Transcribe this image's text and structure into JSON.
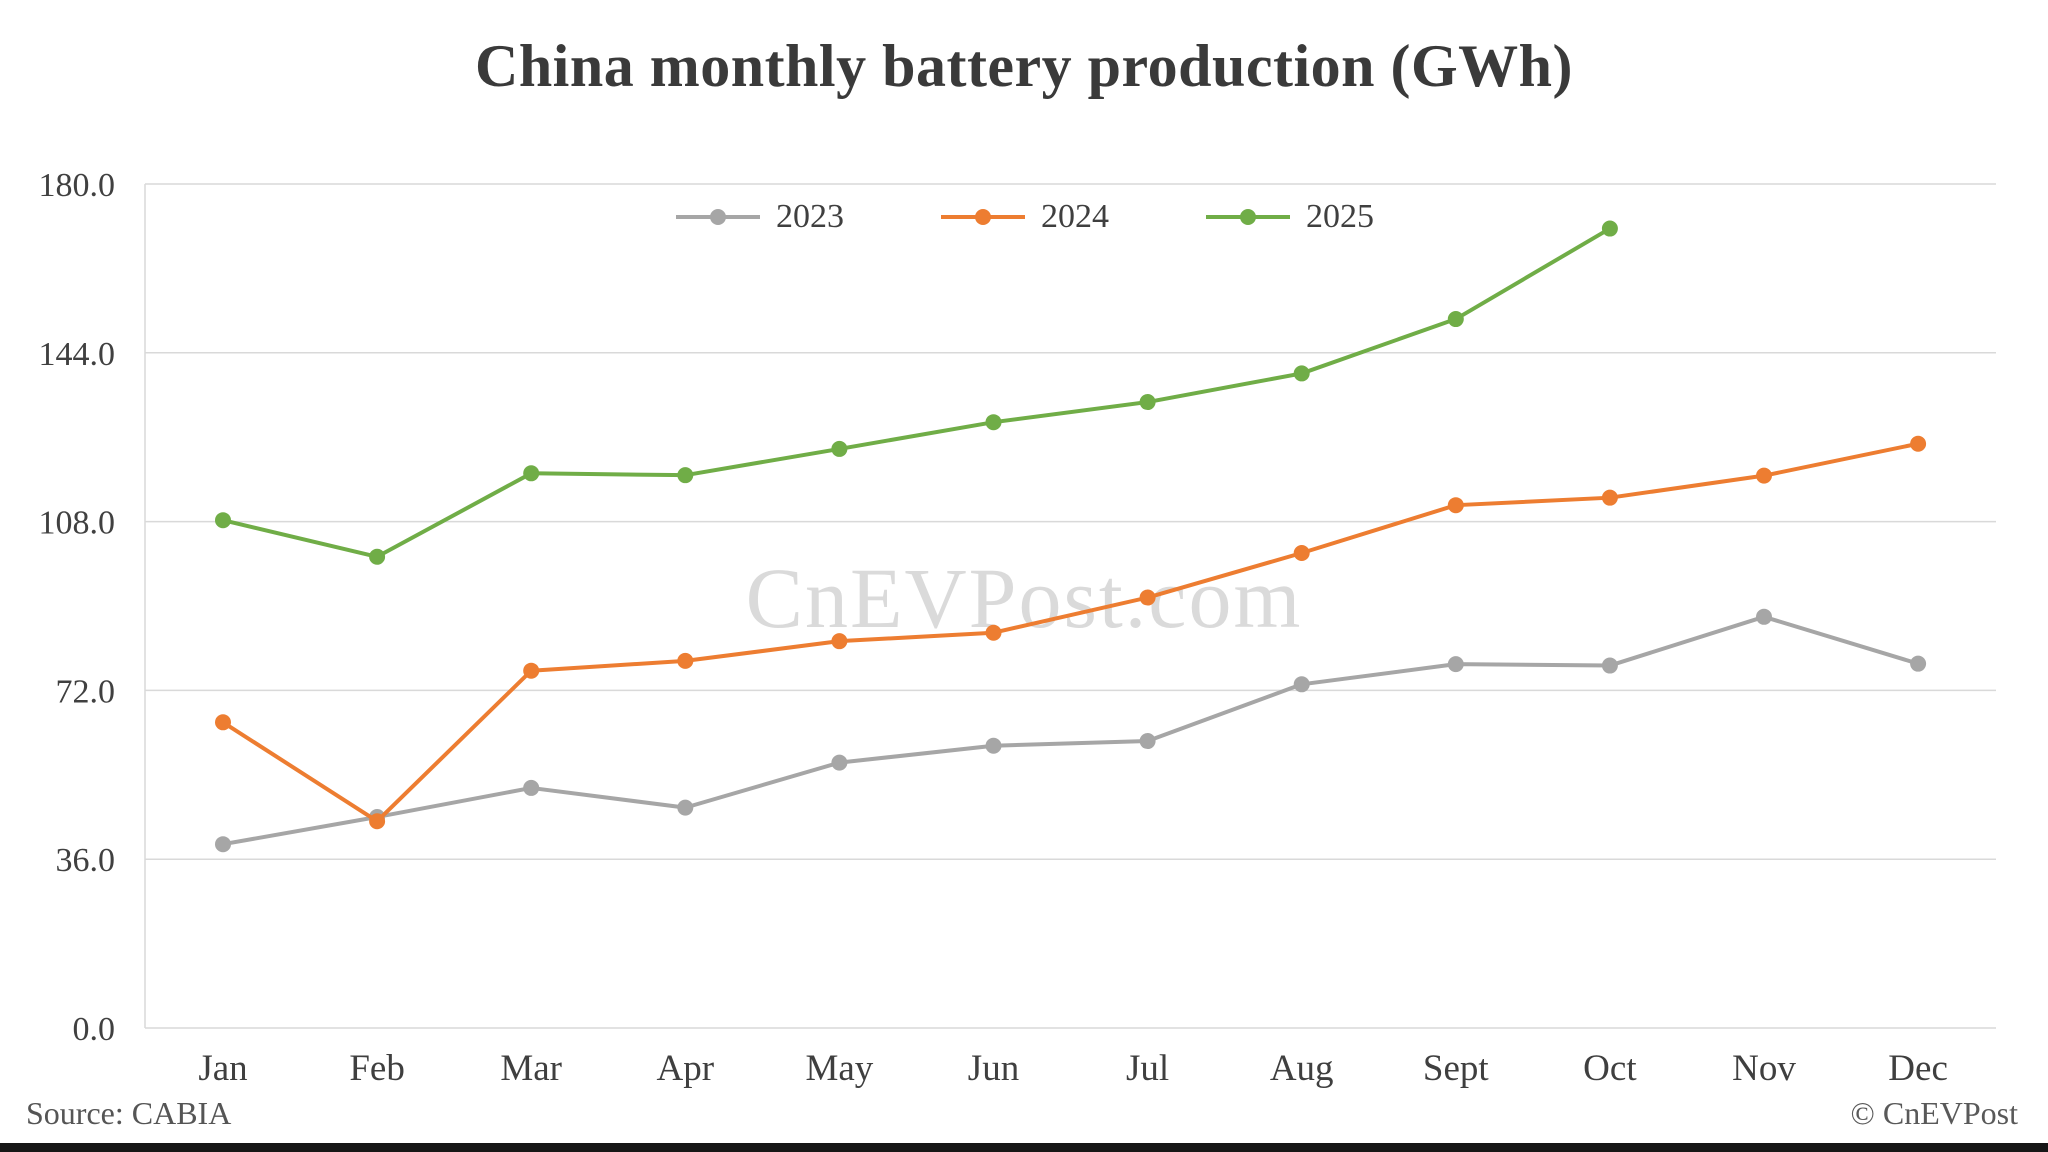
{
  "title": "China monthly battery production (GWh)",
  "watermark": "CnEVPost.com",
  "source": "Source: CABIA",
  "copyright": "© CnEVPost",
  "colors": {
    "series_2023": "#a6a6a6",
    "series_2024": "#ed7d31",
    "series_2025": "#70ad47",
    "grid": "#d9d9d9",
    "title_text": "#3a3a3a",
    "axis_text": "#404040",
    "watermark_text": "#dadada",
    "bottom_bar": "#161616"
  },
  "chart_data": {
    "type": "line",
    "title": "China monthly battery production (GWh)",
    "categories": [
      "Jan",
      "Feb",
      "Mar",
      "Apr",
      "May",
      "Jun",
      "Jul",
      "Aug",
      "Sept",
      "Oct",
      "Nov",
      "Dec"
    ],
    "series": [
      {
        "name": "2023",
        "color": "#a6a6a6",
        "values": [
          39.2,
          45.0,
          51.2,
          47.0,
          56.6,
          60.2,
          61.2,
          73.3,
          77.6,
          77.3,
          87.7,
          77.7
        ]
      },
      {
        "name": "2024",
        "color": "#ed7d31",
        "values": [
          65.2,
          44.1,
          76.2,
          78.3,
          82.5,
          84.3,
          91.8,
          101.3,
          111.5,
          113.1,
          117.8,
          124.6
        ]
      },
      {
        "name": "2025",
        "color": "#70ad47",
        "values": [
          108.3,
          100.5,
          118.3,
          117.9,
          123.5,
          129.2,
          133.5,
          139.6,
          151.2,
          170.5
        ]
      }
    ],
    "yticks": [
      0.0,
      36.0,
      72.0,
      108.0,
      144.0,
      180.0
    ],
    "ylim": [
      0,
      180
    ],
    "xlabel": "",
    "ylabel": "",
    "grid": true,
    "legend_position": "top-center"
  }
}
